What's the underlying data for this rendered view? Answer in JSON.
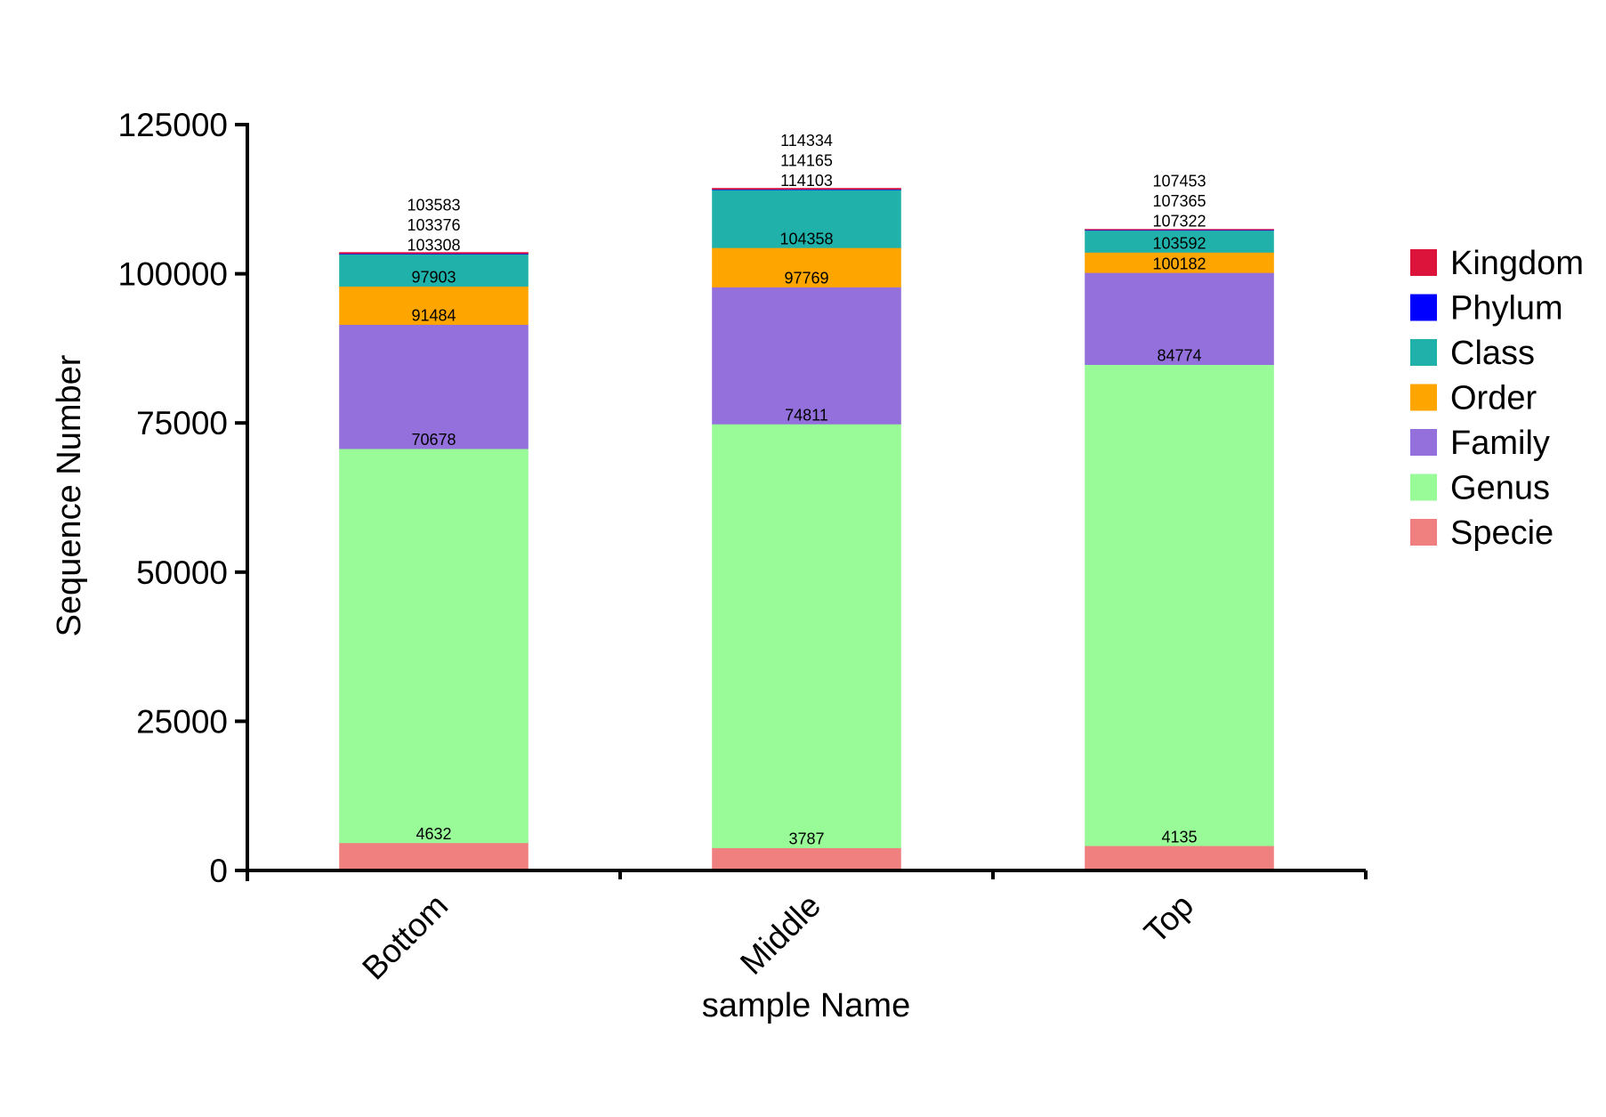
{
  "chart_data": {
    "type": "bar",
    "stacked": true,
    "xlabel": "sample Name",
    "ylabel": "Sequence Number",
    "ylim": [
      0,
      125000
    ],
    "yticks": [
      "0",
      "25000",
      "50000",
      "75000",
      "100000",
      "125000"
    ],
    "ytick_values": [
      0,
      25000,
      50000,
      75000,
      100000,
      125000
    ],
    "categories": [
      "Bottom",
      "Middle",
      "Top"
    ],
    "legend_position": "right",
    "grid": false,
    "series": [
      {
        "name": "Specie",
        "color": "#F08080",
        "cumulative": [
          4632,
          3787,
          4135
        ]
      },
      {
        "name": "Genus",
        "color": "#98FB98",
        "cumulative": [
          70678,
          74811,
          84774
        ]
      },
      {
        "name": "Family",
        "color": "#9370DB",
        "cumulative": [
          91484,
          97769,
          100182
        ]
      },
      {
        "name": "Order",
        "color": "#FFA500",
        "cumulative": [
          97903,
          104358,
          103592
        ]
      },
      {
        "name": "Class",
        "color": "#20B2AA",
        "cumulative": [
          103308,
          114103,
          107322
        ]
      },
      {
        "name": "Phylum",
        "color": "#0000FF",
        "cumulative": [
          103376,
          114165,
          107365
        ]
      },
      {
        "name": "Kingdom",
        "color": "#DC143C",
        "cumulative": [
          103583,
          114334,
          107453
        ]
      }
    ],
    "legend_order": [
      "Kingdom",
      "Phylum",
      "Class",
      "Order",
      "Family",
      "Genus",
      "Specie"
    ]
  }
}
